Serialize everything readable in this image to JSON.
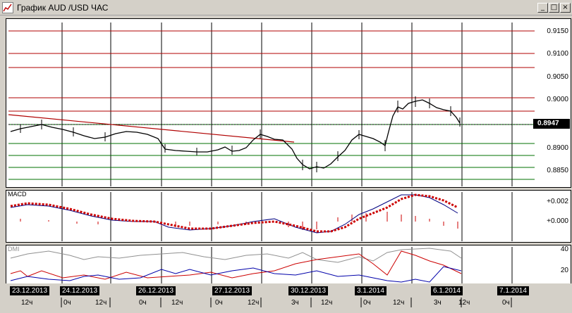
{
  "window": {
    "title": "График AUD /USD ЧАС",
    "minimize_glyph": "_",
    "maximize_glyph": "□",
    "close_glyph": "×"
  },
  "price_axis": {
    "labels": [
      "0.9150",
      "0.9100",
      "0.9050",
      "0.9000",
      "0.8950",
      "0.8900",
      "0.8850"
    ],
    "current_price": "0.8947"
  },
  "macd": {
    "label": "MACD",
    "axis_labels": [
      "+0.002",
      "+0.000"
    ]
  },
  "dmi": {
    "label": "DMI",
    "axis_labels": [
      "40",
      "20"
    ]
  },
  "time_axis": {
    "dates": [
      "23.12.2013",
      "24.12.2013",
      "26.12.2013",
      "27.12.2013",
      "30.12.2013",
      "3.1.2014",
      "6.1.2014",
      "7.1.2014"
    ],
    "hours": [
      "12ч",
      "0ч",
      "12ч",
      "0ч",
      "12ч",
      "0ч",
      "12ч",
      "3ч",
      "12ч",
      "0ч",
      "12ч",
      "3ч",
      "12ч",
      "0ч"
    ]
  },
  "colors": {
    "window_bg": "#d4d0c8",
    "resistance_line": "#b00000",
    "support_line": "#007000",
    "trend_line": "#b00000",
    "macd_signal": "#cc0000",
    "macd_line": "#000080",
    "dmi_plus": "#cc0000",
    "dmi_minus": "#0000aa",
    "adx": "#909090"
  },
  "icons": {
    "app": "chart-app-icon",
    "minimize": "minimize-icon",
    "maximize": "maximize-icon",
    "close": "close-icon"
  }
}
